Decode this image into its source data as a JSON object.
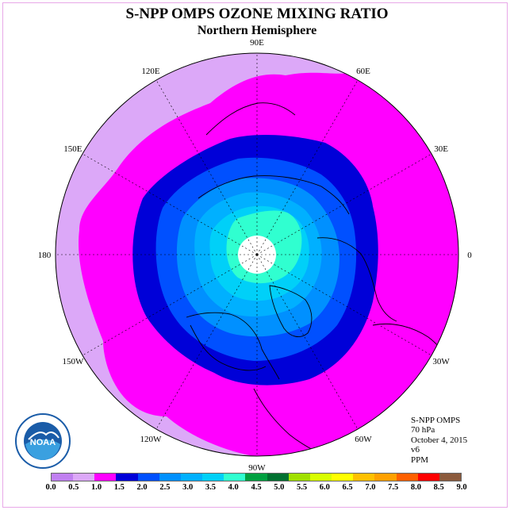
{
  "title": "S-NPP OMPS OZONE MIXING RATIO",
  "subtitle": "Northern Hemisphere",
  "longitude_labels": [
    {
      "text": "90E",
      "lon": 90
    },
    {
      "text": "60E",
      "lon": 60
    },
    {
      "text": "30E",
      "lon": 30
    },
    {
      "text": "0",
      "lon": 0
    },
    {
      "text": "30W",
      "lon": -30
    },
    {
      "text": "60W",
      "lon": -60
    },
    {
      "text": "90W",
      "lon": -90
    },
    {
      "text": "120W",
      "lon": -120
    },
    {
      "text": "150W",
      "lon": -150
    },
    {
      "text": "180",
      "lon": 180
    },
    {
      "text": "150E",
      "lon": 150
    },
    {
      "text": "120E",
      "lon": 120
    }
  ],
  "info": {
    "instrument": "S-NPP OMPS",
    "pressure": "70 hPa",
    "date": "October 4, 2015",
    "version": "v6",
    "units": "PPM"
  },
  "logo": {
    "text": "NOAA",
    "icon": "noaa-logo-icon"
  },
  "colorbar": {
    "labels": [
      "0.0",
      "0.5",
      "1.0",
      "1.5",
      "2.0",
      "2.5",
      "3.0",
      "3.5",
      "4.0",
      "4.5",
      "5.0",
      "5.5",
      "6.0",
      "6.5",
      "7.0",
      "7.5",
      "8.0",
      "8.5",
      "9.0"
    ],
    "colors": [
      "#c080f0",
      "#dca8f8",
      "#ff00ff",
      "#0000d8",
      "#0050ff",
      "#0090ff",
      "#00b0ff",
      "#00d0f8",
      "#30ffd0",
      "#00a040",
      "#007030",
      "#a0e000",
      "#d8ff00",
      "#ffff00",
      "#ffc000",
      "#ffa000",
      "#ff6000",
      "#ff0000",
      "#8b5a3c"
    ]
  },
  "colors": {
    "lavender": "#dca8f8",
    "magenta": "#ff00ff",
    "dark_blue": "#0000d8",
    "blue": "#0050ff",
    "mid_blue": "#0090ff",
    "light_blue": "#00b0ff",
    "cyan": "#00d0f8",
    "aqua": "#30ffd0",
    "pole_hole": "#ffffff"
  }
}
